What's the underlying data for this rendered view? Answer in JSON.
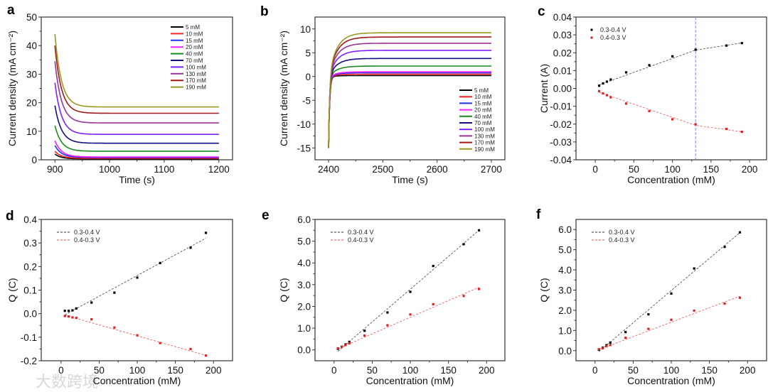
{
  "watermark": "大数跨境",
  "chart_data": [
    {
      "panel": "a",
      "type": "line",
      "xlabel": "Time (s)",
      "ylabel": "Current density (mA cm⁻²)",
      "xlim": [
        875,
        1225
      ],
      "ylim": [
        0,
        50
      ],
      "xticks": [
        900,
        1000,
        1100,
        1200
      ],
      "xticklabels": [
        "900",
        "1000",
        "1100",
        "1200"
      ],
      "yticks": [
        0,
        10,
        20,
        30,
        40,
        50
      ],
      "yticklabels": [
        "0",
        "10",
        "20",
        "30",
        "40",
        "50"
      ],
      "legend_position": "top-right",
      "t_range": [
        900,
        1200
      ],
      "series": [
        {
          "name": "5 mM",
          "color": "#000000",
          "peak": 2,
          "steady": 0.3
        },
        {
          "name": "10 mM",
          "color": "#ff2020",
          "peak": 3,
          "steady": 0.5
        },
        {
          "name": "15 mM",
          "color": "#2030ff",
          "peak": 5,
          "steady": 0.8
        },
        {
          "name": "20 mM",
          "color": "#ff20ff",
          "peak": 6.7,
          "steady": 1.0
        },
        {
          "name": "40 mM",
          "color": "#1a8c1a",
          "peak": 12,
          "steady": 3.0
        },
        {
          "name": "70 mM",
          "color": "#101080",
          "peak": 19,
          "steady": 5.8
        },
        {
          "name": "100 mM",
          "color": "#7f1fff",
          "peak": 27,
          "steady": 8.9
        },
        {
          "name": "130 mM",
          "color": "#993399",
          "peak": 34.5,
          "steady": 12.9
        },
        {
          "name": "170 mM",
          "color": "#a01818",
          "peak": 40,
          "steady": 16.3
        },
        {
          "name": "190 mM",
          "color": "#999920",
          "peak": 44,
          "steady": 18.5
        }
      ]
    },
    {
      "panel": "b",
      "type": "line",
      "xlabel": "Time (s)",
      "ylabel": "Current density (mA cm⁻²)",
      "xlim": [
        2375,
        2725
      ],
      "ylim": [
        -17.5,
        12.5
      ],
      "xticks": [
        2400,
        2500,
        2600,
        2700
      ],
      "xticklabels": [
        "2400",
        "2500",
        "2600",
        "2700"
      ],
      "yticks": [
        -15,
        -10,
        -5,
        0,
        5,
        10
      ],
      "yticklabels": [
        "-15",
        "-10",
        "-5",
        "0",
        "5",
        "10"
      ],
      "legend_position": "bottom-right",
      "t_range": [
        2400,
        2700
      ],
      "start": -15,
      "series": [
        {
          "name": "5 mM",
          "color": "#000000",
          "steady": 0.2
        },
        {
          "name": "10 mM",
          "color": "#ff2020",
          "steady": 0.5
        },
        {
          "name": "15 mM",
          "color": "#2030ff",
          "steady": 0.8
        },
        {
          "name": "20 mM",
          "color": "#ff20ff",
          "steady": 1.0
        },
        {
          "name": "40 mM",
          "color": "#1a8c1a",
          "steady": 2.2
        },
        {
          "name": "70 mM",
          "color": "#101080",
          "steady": 3.8
        },
        {
          "name": "100 mM",
          "color": "#7f1fff",
          "steady": 5.5
        },
        {
          "name": "130 mM",
          "color": "#993399",
          "steady": 7.0
        },
        {
          "name": "170 mM",
          "color": "#a01818",
          "steady": 8.3
        },
        {
          "name": "190 mM",
          "color": "#999920",
          "steady": 9.2
        }
      ]
    },
    {
      "panel": "c",
      "type": "scatter",
      "xlabel": "Concentration (mM)",
      "ylabel": "Current (A)",
      "xlim": [
        -25,
        222
      ],
      "ylim": [
        -0.04,
        0.04
      ],
      "xticks": [
        0,
        50,
        100,
        150,
        200
      ],
      "xticklabels": [
        "0",
        "50",
        "100",
        "150",
        "200"
      ],
      "yticks": [
        -0.04,
        -0.03,
        -0.02,
        -0.01,
        0,
        0.01,
        0.02,
        0.03,
        0.04
      ],
      "yticklabels": [
        "-0.04",
        "-0.03",
        "-0.02",
        "-0.01",
        "0.00",
        "0.01",
        "0.02",
        "0.03",
        "0.04"
      ],
      "legend_position": "top-left",
      "legend_style": "marker",
      "vline": {
        "x": 130,
        "color": "#8080ff"
      },
      "x": [
        5,
        10,
        15,
        20,
        40,
        70,
        100,
        130,
        170,
        190
      ],
      "series": [
        {
          "name": "0.3-0.4 V",
          "color": "#000000",
          "values": [
            0.0015,
            0.0028,
            0.0038,
            0.005,
            0.009,
            0.013,
            0.018,
            0.0217,
            0.024,
            0.0254
          ],
          "fit": [
            [
              5,
              0.002
            ],
            [
              130,
              0.0215
            ],
            [
              190,
              0.0255
            ]
          ]
        },
        {
          "name": "0.4-0.3 V",
          "color": "#e02020",
          "values": [
            -0.0015,
            -0.0028,
            -0.0038,
            -0.005,
            -0.0085,
            -0.0127,
            -0.0173,
            -0.0201,
            -0.0227,
            -0.0243
          ],
          "fit": [
            [
              5,
              -0.0022
            ],
            [
              130,
              -0.0207
            ],
            [
              190,
              -0.0243
            ]
          ]
        }
      ]
    },
    {
      "panel": "d",
      "type": "scatter",
      "xlabel": "Concentration (mM)",
      "ylabel": "Q (C)",
      "xlim": [
        -26,
        225
      ],
      "ylim": [
        -0.2,
        0.4
      ],
      "xticks": [
        0,
        50,
        100,
        150,
        200
      ],
      "xticklabels": [
        "0",
        "50",
        "100",
        "150",
        "200"
      ],
      "yticks": [
        -0.2,
        -0.1,
        0,
        0.1,
        0.2,
        0.3,
        0.4
      ],
      "yticklabels": [
        "-0.2",
        "-0.1",
        "0.0",
        "0.1",
        "0.2",
        "0.3",
        "0.4"
      ],
      "legend_position": "top-left",
      "legend_style": "dashed-line",
      "x": [
        5,
        10,
        15,
        20,
        40,
        70,
        100,
        130,
        170,
        190
      ],
      "series": [
        {
          "name": "0.3-0.4 V",
          "color": "#000000",
          "values": [
            0.012,
            0.012,
            0.014,
            0.022,
            0.047,
            0.089,
            0.153,
            0.215,
            0.28,
            0.343
          ],
          "fit": [
            [
              5,
              -0.005
            ],
            [
              190,
              0.32
            ]
          ]
        },
        {
          "name": "0.4-0.3 V",
          "color": "#e02020",
          "values": [
            -0.01,
            -0.012,
            -0.016,
            -0.018,
            -0.024,
            -0.059,
            -0.092,
            -0.125,
            -0.15,
            -0.178
          ],
          "fit": [
            [
              5,
              -0.006
            ],
            [
              190,
              -0.177
            ]
          ]
        }
      ]
    },
    {
      "panel": "e",
      "type": "scatter",
      "xlabel": "Concentration (mM)",
      "ylabel": "Q (C)",
      "xlim": [
        -25,
        224
      ],
      "ylim": [
        -0.5,
        6.0
      ],
      "xticks": [
        0,
        50,
        100,
        150,
        200
      ],
      "xticklabels": [
        "0",
        "50",
        "100",
        "150",
        "200"
      ],
      "yticks": [
        0,
        1,
        2,
        3,
        4,
        5,
        6
      ],
      "yticklabels": [
        "0.0",
        "1.0",
        "2.0",
        "3.0",
        "4.0",
        "5.0",
        "6.0"
      ],
      "legend_position": "top-left",
      "legend_style": "dashed-line",
      "x": [
        5,
        10,
        15,
        20,
        40,
        70,
        100,
        130,
        170,
        190
      ],
      "series": [
        {
          "name": "0.3-0.4 V",
          "color": "#000000",
          "values": [
            0.05,
            0.15,
            0.25,
            0.37,
            0.88,
            1.72,
            2.67,
            3.86,
            4.86,
            5.5
          ],
          "fit": [
            [
              5,
              -0.07
            ],
            [
              190,
              5.5
            ]
          ]
        },
        {
          "name": "0.4-0.3 V",
          "color": "#e02020",
          "values": [
            0.07,
            0.15,
            0.22,
            0.3,
            0.66,
            1.13,
            1.63,
            2.1,
            2.48,
            2.8
          ],
          "fit": [
            [
              5,
              0.05
            ],
            [
              190,
              2.88
            ]
          ]
        }
      ]
    },
    {
      "panel": "f",
      "type": "scatter",
      "xlabel": "Concentration (mM)",
      "ylabel": "Q (C)",
      "xlim": [
        -25,
        225
      ],
      "ylim": [
        -0.5,
        6.5
      ],
      "xticks": [
        0,
        50,
        100,
        150,
        200
      ],
      "xticklabels": [
        "0",
        "50",
        "100",
        "150",
        "200"
      ],
      "yticks": [
        0,
        1,
        2,
        3,
        4,
        5,
        6
      ],
      "yticklabels": [
        "0.0",
        "1.0",
        "2.0",
        "3.0",
        "4.0",
        "5.0",
        "6.0"
      ],
      "legend_position": "top-left",
      "legend_style": "dashed-line",
      "x": [
        5,
        10,
        15,
        20,
        40,
        70,
        100,
        130,
        170,
        190
      ],
      "series": [
        {
          "name": "0.3-0.4 V",
          "color": "#000000",
          "values": [
            0.05,
            0.15,
            0.27,
            0.4,
            0.92,
            1.8,
            2.83,
            4.07,
            5.14,
            5.86
          ],
          "fit": [
            [
              5,
              -0.05
            ],
            [
              190,
              5.85
            ]
          ]
        },
        {
          "name": "0.4-0.3 V",
          "color": "#e02020",
          "values": [
            0.07,
            0.12,
            0.22,
            0.28,
            0.64,
            1.08,
            1.53,
            1.98,
            2.33,
            2.62
          ],
          "fit": [
            [
              5,
              0.05
            ],
            [
              190,
              2.7
            ]
          ]
        }
      ]
    }
  ]
}
